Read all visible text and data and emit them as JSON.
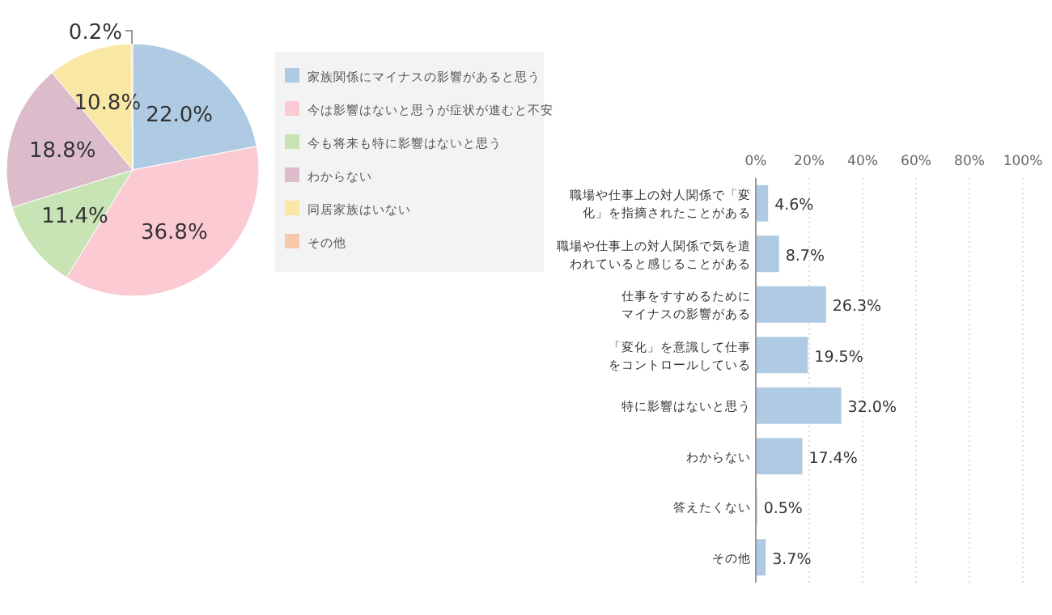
{
  "chart_data": [
    {
      "type": "pie",
      "categories": [
        "家族関係にマイナスの影響があると思う",
        "今は影響はないと思うが症状が進むと不安",
        "今も将来も特に影響はないと思う",
        "わからない",
        "同居家族はいない",
        "その他"
      ],
      "values": [
        22.0,
        36.8,
        11.4,
        18.8,
        10.8,
        0.2
      ],
      "colors": [
        "#aecbe3",
        "#fccad3",
        "#c8e3b4",
        "#dcbccb",
        "#f8e8a4",
        "#f8c9a8"
      ],
      "value_labels": [
        "22.0%",
        "36.8%",
        "11.4%",
        "18.8%",
        "10.8%",
        "0.2%"
      ],
      "legend": "right"
    },
    {
      "type": "bar",
      "orientation": "horizontal",
      "categories": [
        "職場や仕事上の対人関係で「変化」を指摘されたことがある",
        "職場や仕事上の対人関係で気を遣われていると感じることがある",
        "仕事をすすめるためにマイナスの影響がある",
        "「変化」を意識して仕事をコントロールしている",
        "特に影響はないと思う",
        "わからない",
        "答えたくない",
        "その他"
      ],
      "values": [
        4.6,
        8.7,
        26.3,
        19.5,
        32.0,
        17.4,
        0.5,
        3.7
      ],
      "color": "#aecbe3",
      "value_labels": [
        "4.6%",
        "8.7%",
        "26.3%",
        "19.5%",
        "32.0%",
        "17.4%",
        "0.5%",
        "3.7%"
      ],
      "xlim": [
        0,
        100
      ],
      "xticks": [
        {
          "value": 0,
          "label": "0%"
        },
        {
          "value": 20,
          "label": "20%"
        },
        {
          "value": 40,
          "label": "40%"
        },
        {
          "value": 60,
          "label": "60%"
        },
        {
          "value": 80,
          "label": "80%"
        },
        {
          "value": 100,
          "label": "100%"
        }
      ],
      "grid": "x"
    }
  ]
}
